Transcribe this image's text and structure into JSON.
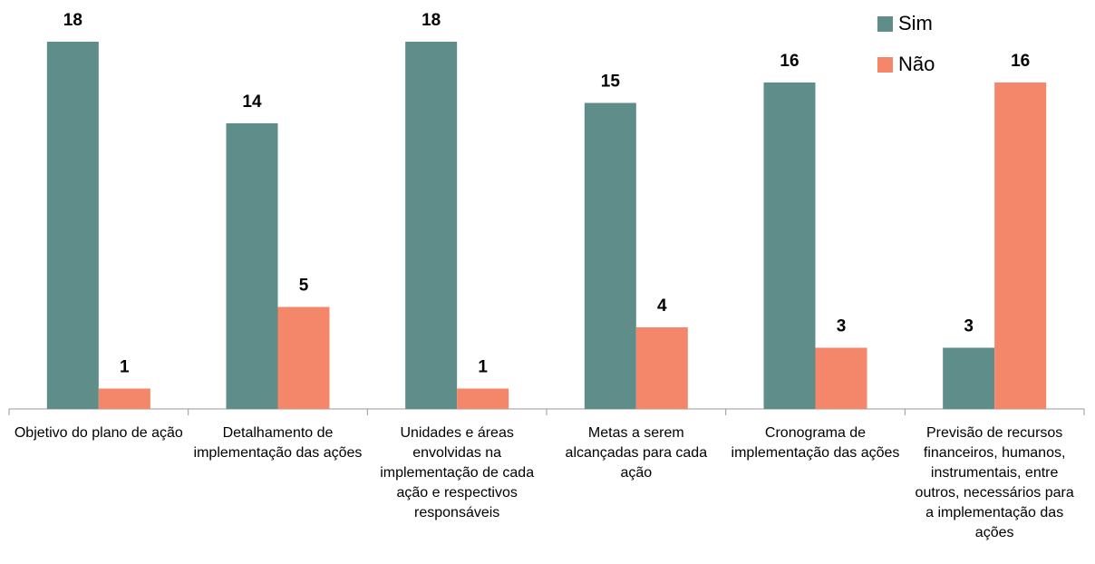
{
  "chart_data": {
    "type": "bar",
    "categories": [
      "Objetivo do plano de ação",
      "Detalhamento de implementação das ações",
      "Unidades e áreas envolvidas na implementação de cada ação e respectivos responsáveis",
      "Metas a serem alcançadas para cada ação",
      "Cronograma de implementação das ações",
      "Previsão de recursos financeiros, humanos, instrumentais, entre outros, necessários para a implementação das ações"
    ],
    "series": [
      {
        "name": "Sim",
        "color": "#5f8e8a",
        "values": [
          18,
          14,
          18,
          15,
          16,
          3
        ]
      },
      {
        "name": "Não",
        "color": "#f4866a",
        "values": [
          1,
          5,
          1,
          4,
          3,
          16
        ]
      }
    ],
    "legend": "top-right"
  }
}
